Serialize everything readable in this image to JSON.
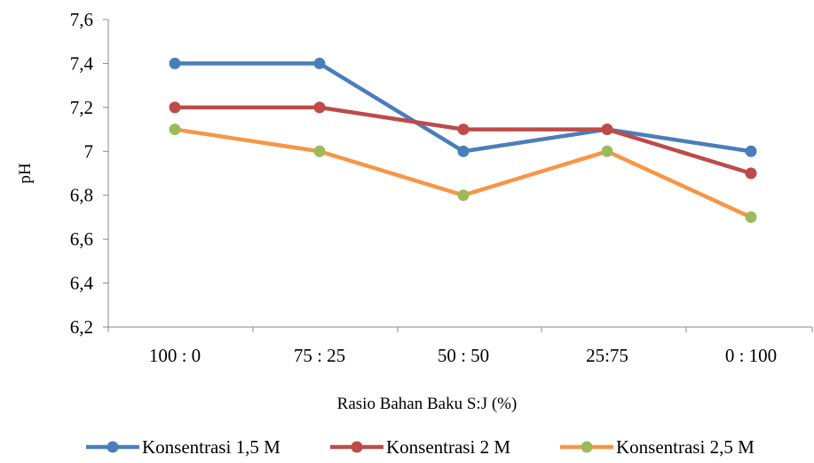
{
  "chart_data": {
    "type": "line",
    "title": "",
    "xlabel": "Rasio Bahan Baku S:J (%)",
    "ylabel": "pH",
    "categories": [
      "100 : 0",
      "75 : 25",
      "50 : 50",
      "25:75",
      "0 : 100"
    ],
    "ylim": [
      6.2,
      7.6
    ],
    "yticks": [
      "6,2",
      "6,4",
      "6,6",
      "6,8",
      "7",
      "7,2",
      "7,4",
      "7,6"
    ],
    "ytick_values": [
      6.2,
      6.4,
      6.6,
      6.8,
      7.0,
      7.2,
      7.4,
      7.6
    ],
    "grid": false,
    "legend_position": "bottom",
    "series": [
      {
        "name": "Konsentrasi 1,5 M",
        "values": [
          7.4,
          7.4,
          7.0,
          7.1,
          7.0
        ],
        "color": "#4a7ebb"
      },
      {
        "name": "Konsentrasi 2 M",
        "values": [
          7.2,
          7.2,
          7.1,
          7.1,
          6.9
        ],
        "color": "#be4b48"
      },
      {
        "name": "Konsentrasi 2,5 M",
        "values": [
          7.1,
          7.0,
          6.8,
          7.0,
          6.7
        ],
        "color": "#f79646",
        "marker_color": "#9bbb59"
      }
    ]
  }
}
